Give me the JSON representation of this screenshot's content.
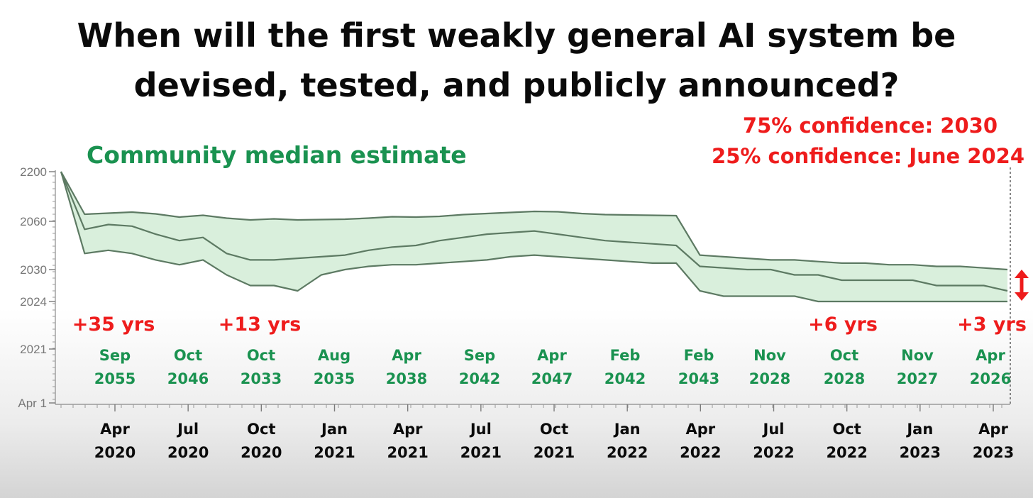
{
  "title_line1": "When will the first weakly general AI system be",
  "title_line2": "devised, tested, and publicly announced?",
  "confidence_75": "75% confidence: 2030",
  "confidence_25": "25% confidence: June 2024",
  "legend_label": "Community median estimate",
  "colors": {
    "band_fill": "#d9efdc",
    "line": "#5d7a63",
    "annotation_red": "#ee1c1c",
    "annotation_green": "#1a9250"
  },
  "chart_data": {
    "type": "area",
    "y_ticks": [
      "2200",
      "2060",
      "2030",
      "2024",
      "2021",
      "Apr 1"
    ],
    "x_ticks": [
      [
        "Apr",
        "2020"
      ],
      [
        "Jul",
        "2020"
      ],
      [
        "Oct",
        "2020"
      ],
      [
        "Jan",
        "2021"
      ],
      [
        "Apr",
        "2021"
      ],
      [
        "Jul",
        "2021"
      ],
      [
        "Oct",
        "2021"
      ],
      [
        "Jan",
        "2022"
      ],
      [
        "Apr",
        "2022"
      ],
      [
        "Jul",
        "2022"
      ],
      [
        "Oct",
        "2022"
      ],
      [
        "Jan",
        "2023"
      ],
      [
        "Apr",
        "2023"
      ]
    ],
    "x": [
      "2020-01",
      "2020-02",
      "2020-03",
      "2020-04",
      "2020-05",
      "2020-06",
      "2020-07",
      "2020-08",
      "2020-09",
      "2020-10",
      "2020-11",
      "2020-12",
      "2021-01",
      "2021-02",
      "2021-03",
      "2021-04",
      "2021-05",
      "2021-06",
      "2021-07",
      "2021-08",
      "2021-09",
      "2021-10",
      "2021-11",
      "2021-12",
      "2022-01",
      "2022-02",
      "2022-03",
      "2022-04",
      "2022-05",
      "2022-06",
      "2022-07",
      "2022-08",
      "2022-09",
      "2022-10",
      "2022-11",
      "2022-12",
      "2023-01",
      "2023-02",
      "2023-03",
      "2023-04",
      "2023-05"
    ],
    "series": [
      {
        "values": [
          2200,
          2080,
          2083,
          2086,
          2081,
          2072,
          2077,
          2069,
          2064,
          2067,
          2064,
          2065,
          2066,
          2069,
          2073,
          2072,
          2074,
          2079,
          2082,
          2085,
          2088,
          2087,
          2082,
          2079,
          2078,
          2077,
          2076,
          2039,
          2038,
          2037,
          2036,
          2036,
          2035,
          2034,
          2034,
          2033,
          2033,
          2032,
          2032,
          2031,
          2030
        ]
      },
      {
        "values": [
          2200,
          2055,
          2058,
          2057,
          2052,
          2048,
          2050,
          2040,
          2036,
          2036,
          2037,
          2038,
          2039,
          2042,
          2044,
          2045,
          2048,
          2050,
          2052,
          2053,
          2054,
          2052,
          2050,
          2048,
          2047,
          2046,
          2045,
          2032,
          2031,
          2030,
          2030,
          2029,
          2029,
          2028,
          2028,
          2028,
          2028,
          2027,
          2027,
          2027,
          2026
        ]
      },
      {
        "values": [
          2200,
          2040,
          2042,
          2040,
          2036,
          2033,
          2036,
          2029,
          2027,
          2027,
          2026,
          2029,
          2030,
          2032,
          2033,
          2033,
          2034,
          2035,
          2036,
          2038,
          2039,
          2038,
          2037,
          2036,
          2035,
          2034,
          2034,
          2026,
          2025,
          2025,
          2025,
          2025,
          2024,
          2024,
          2024,
          2024,
          2024,
          2024,
          2024,
          2024,
          2024
        ]
      }
    ],
    "annotations_delta": [
      {
        "label": "+35 yrs",
        "x": "2020-03"
      },
      {
        "label": "+13 yrs",
        "x": "2020-09"
      },
      {
        "label": "+6 yrs",
        "x": "2022-09"
      },
      {
        "label": "+3 yrs",
        "x": "2023-04"
      }
    ],
    "annotations_dates": [
      [
        "Sep",
        "2055"
      ],
      [
        "Oct",
        "2046"
      ],
      [
        "Oct",
        "2033"
      ],
      [
        "Aug",
        "2035"
      ],
      [
        "Apr",
        "2038"
      ],
      [
        "Sep",
        "2042"
      ],
      [
        "Apr",
        "2047"
      ],
      [
        "Feb",
        "2042"
      ],
      [
        "Feb",
        "2043"
      ],
      [
        "Nov",
        "2028"
      ],
      [
        "Oct",
        "2028"
      ],
      [
        "Nov",
        "2027"
      ],
      [
        "Apr",
        "2026"
      ]
    ]
  }
}
